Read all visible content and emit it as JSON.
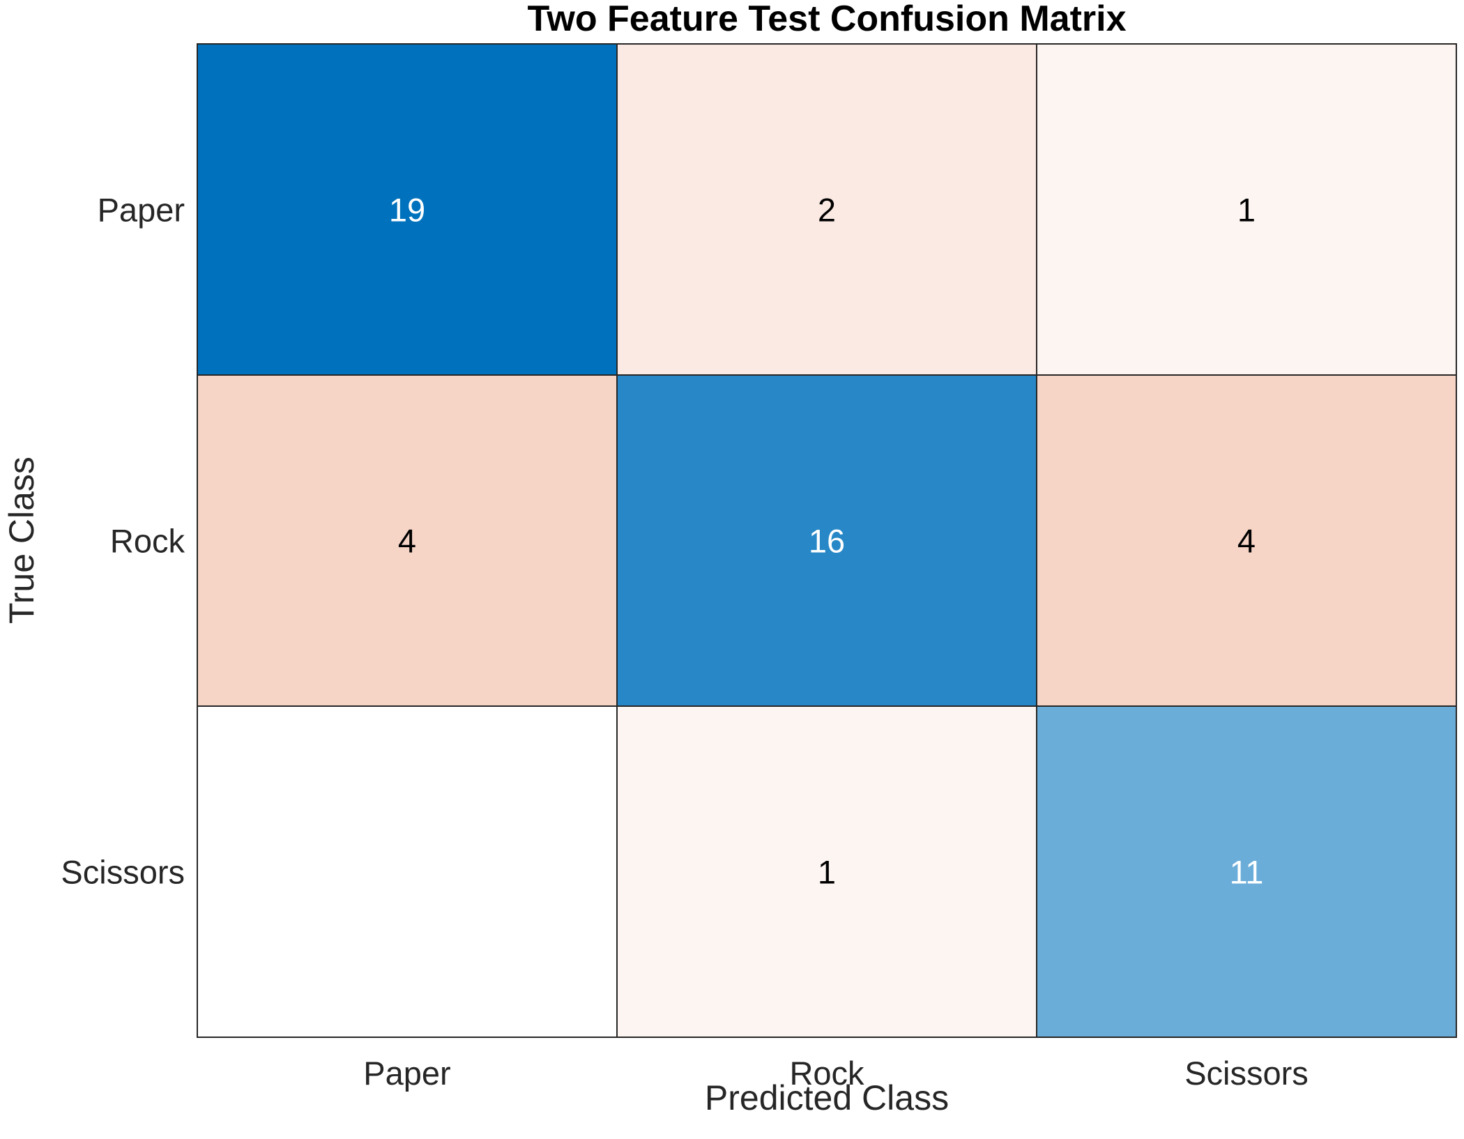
{
  "chart_data": {
    "type": "heatmap",
    "title": "Two Feature Test Confusion Matrix",
    "xlabel": "Predicted Class",
    "ylabel": "True Class",
    "x_categories": [
      "Paper",
      "Rock",
      "Scissors"
    ],
    "y_categories": [
      "Paper",
      "Rock",
      "Scissors"
    ],
    "values": [
      [
        19,
        2,
        1
      ],
      [
        4,
        16,
        4
      ],
      [
        0,
        1,
        11
      ]
    ],
    "zero_label_shown": false,
    "colors": {
      "diagonal_max": "#0072BD",
      "off_diagonal_max": "#F6D5C7",
      "empty": "#FFFFFF",
      "grid_line": "#262626",
      "text_dark": "#000000",
      "text_light": "#FFFFFF"
    }
  }
}
